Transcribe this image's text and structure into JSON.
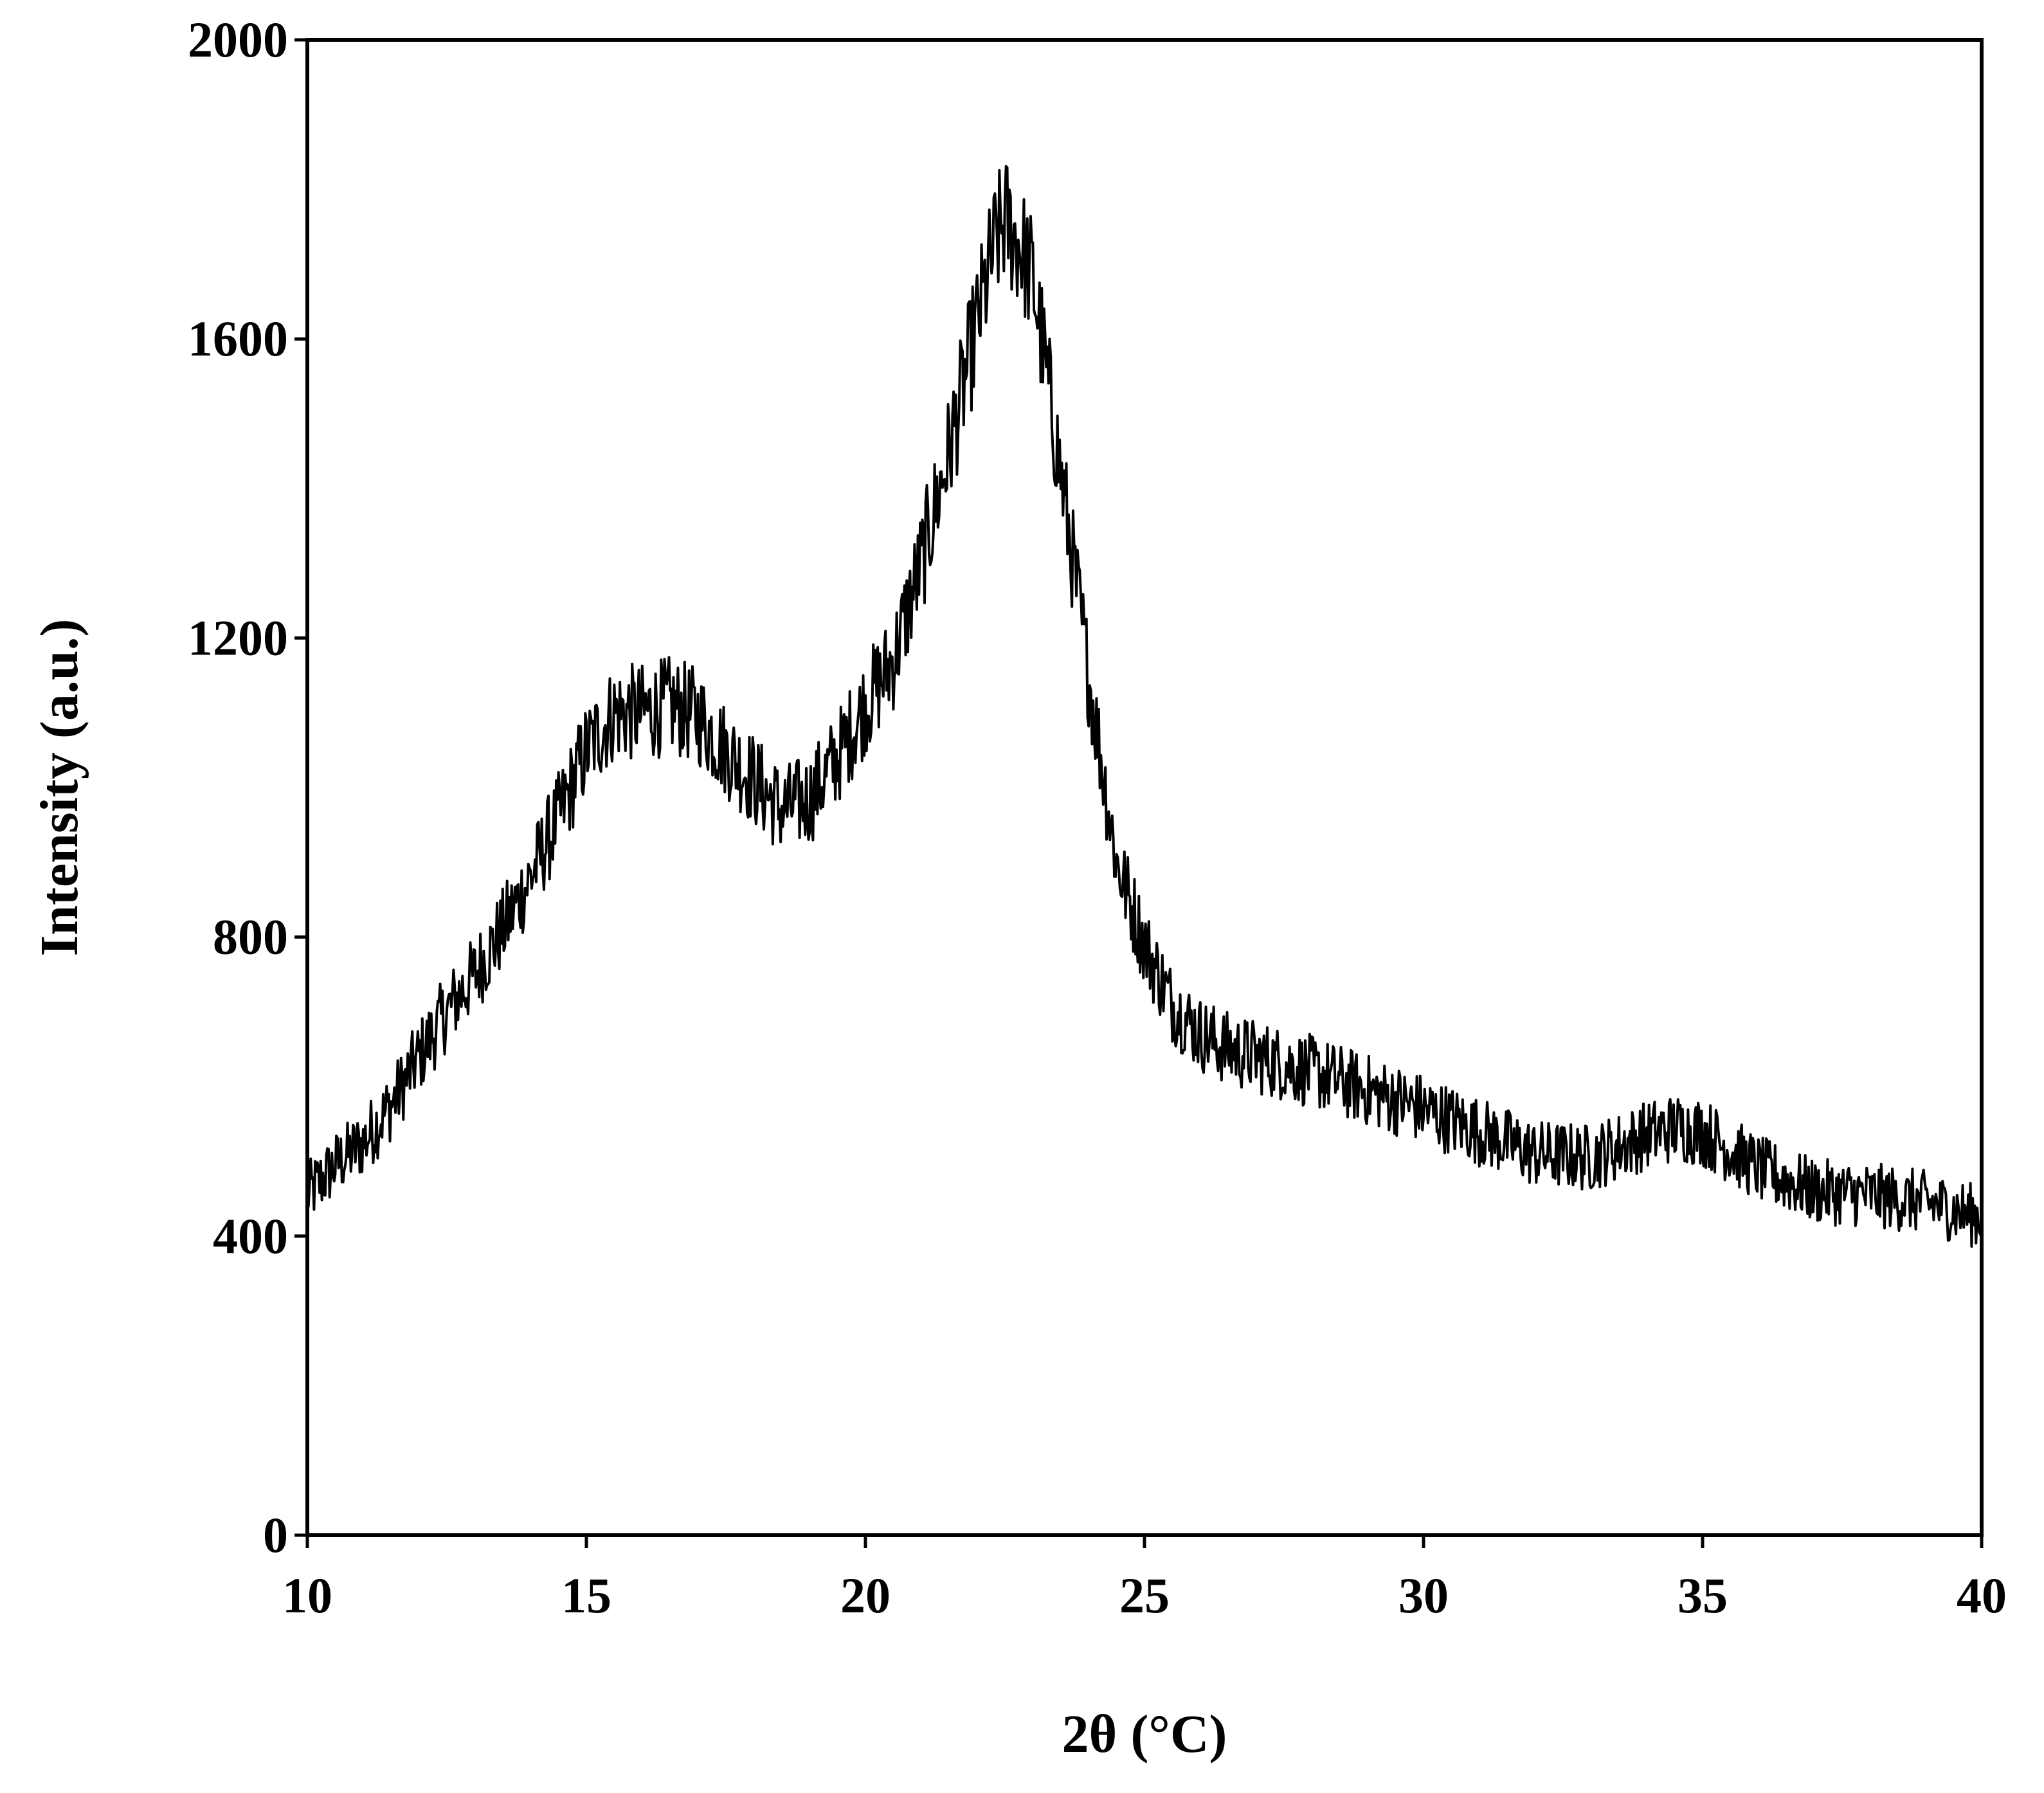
{
  "chart_data": {
    "type": "line",
    "title": "",
    "xlabel": "2θ (°C)",
    "ylabel": "Intensity (a.u.)",
    "xlim": [
      10,
      40
    ],
    "ylim": [
      0,
      2000
    ],
    "xticks": [
      10,
      15,
      20,
      25,
      30,
      35,
      40
    ],
    "yticks": [
      0,
      400,
      800,
      1200,
      1600,
      2000
    ],
    "grid": false,
    "legend": "none",
    "line_color": "#000000",
    "series": [
      {
        "x": [
          10,
          10.5,
          11,
          11.5,
          12,
          12.5,
          13,
          13.5,
          14,
          14.5,
          15,
          15.5,
          16,
          16.5,
          17,
          17.5,
          18,
          18.5,
          19,
          19.5,
          20,
          20.5,
          21,
          21.5,
          22,
          22.3,
          22.5,
          22.8,
          23,
          23.5,
          24,
          24.5,
          25,
          25.5,
          26,
          26.5,
          27,
          28,
          29,
          30,
          31,
          32,
          33,
          34,
          34.5,
          35,
          36,
          37,
          38,
          39,
          40
        ],
        "values": [
          455,
          495,
          525,
          575,
          640,
          700,
          750,
          810,
          880,
          960,
          1050,
          1100,
          1100,
          1110,
          1095,
          1050,
          1010,
          970,
          985,
          1040,
          1110,
          1170,
          1300,
          1450,
          1620,
          1720,
          1760,
          1720,
          1680,
          1420,
          1150,
          900,
          790,
          710,
          670,
          650,
          640,
          620,
          595,
          570,
          540,
          510,
          505,
          535,
          545,
          540,
          490,
          460,
          455,
          445,
          425
        ]
      }
    ]
  }
}
